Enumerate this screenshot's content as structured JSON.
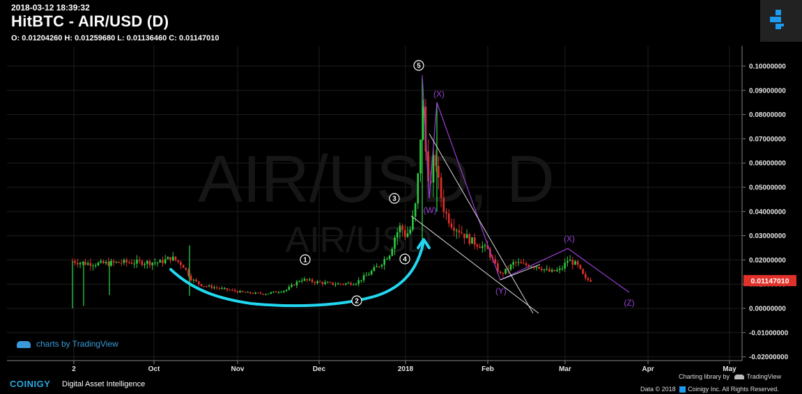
{
  "header": {
    "timestamp": "2018-03-12 18:39:32",
    "title": "HitBTC - AIR/USD (D)",
    "ohlc": "O: 0.01204260 H: 0.01259680 L: 0.01136460 C: 0.01147010"
  },
  "watermark": {
    "main": "AIR/USD, D",
    "sub": "AIR/USD"
  },
  "chart_data": {
    "type": "candlestick",
    "xlabels": [
      "2",
      "Oct",
      "Nov",
      "Dec",
      "2018",
      "Feb",
      "Mar",
      "Apr",
      "May"
    ],
    "yticks": [
      "0.10000000",
      "0.09000000",
      "0.08000000",
      "0.07000000",
      "0.06000000",
      "0.05000000",
      "0.04000000",
      "0.03000000",
      "0.02000000",
      "0.01000000",
      "0.00000000",
      "-0.01000000",
      "-0.02000000"
    ],
    "ylim": [
      -0.02,
      0.107
    ],
    "last_price": "0.01147010",
    "colors": {
      "up": "#2ecc40",
      "down": "#e0312b",
      "price_tag": "#e0312b",
      "annotation": "#9b3fd9",
      "arrow": "#22d8f0"
    },
    "wave_labels": [
      "1",
      "2",
      "3",
      "4",
      "5"
    ],
    "correction_labels": [
      "(W)",
      "(X)",
      "(Y)",
      "(X)",
      "(Z)"
    ]
  },
  "footer": {
    "tv_link": "charts by TradingView",
    "brand": "COINIGY",
    "tagline": "Digital Asset Intelligence",
    "charting": "Charting library by",
    "charting_brand": "TradingView",
    "copyright": "Data © 2018",
    "copyright2": "Coinigy Inc. All Rights Reserved."
  }
}
